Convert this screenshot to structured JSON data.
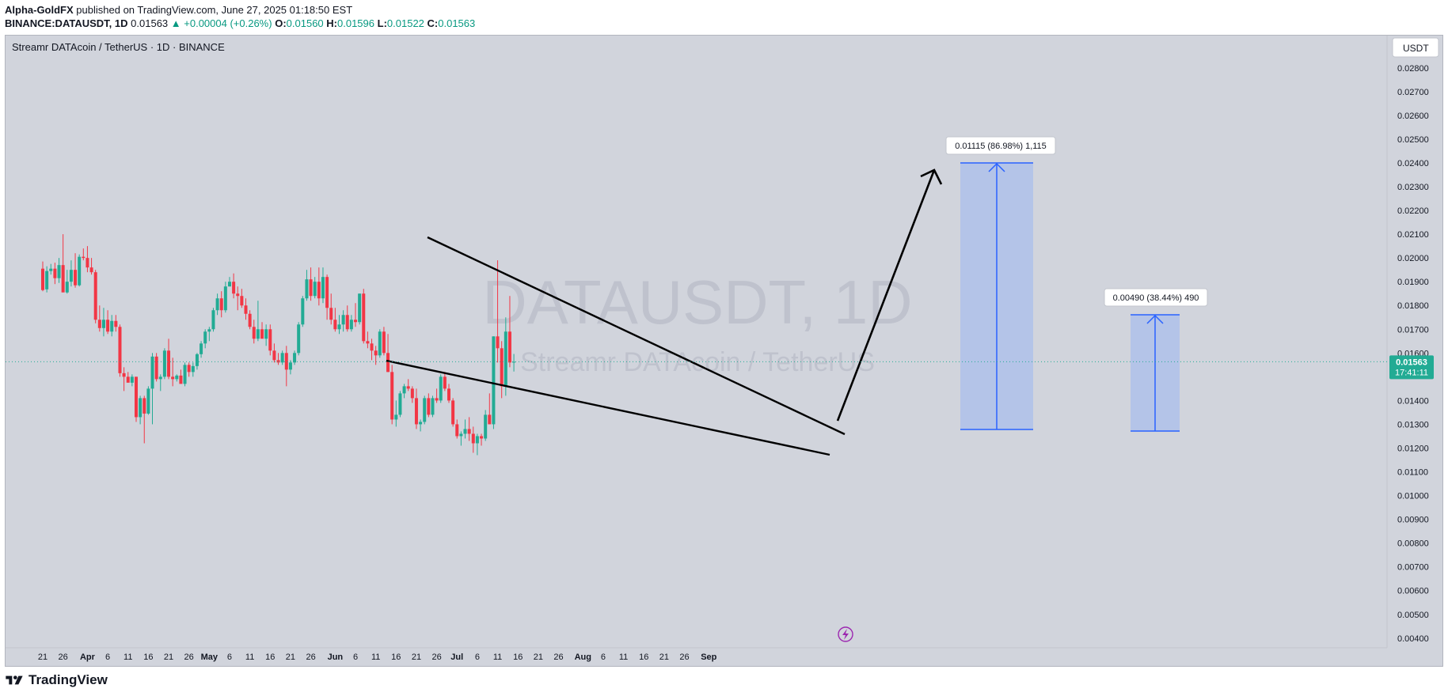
{
  "header": {
    "publisher": "Alpha-GoldFX",
    "published_text": "published on TradingView.com, June 27, 2025 01:18:50 EST",
    "symbol_line": "BINANCE:DATAUSDT, 1D",
    "last": "0.01563",
    "change": "▲ +0.00004 (+0.26%)",
    "o_label": "O:",
    "o": "0.01560",
    "h_label": "H:",
    "h": "0.01596",
    "l_label": "L:",
    "l": "0.01522",
    "c_label": "C:",
    "c": "0.01563"
  },
  "legend": {
    "title": "Streamr DATAcoin / TetherUS · 1D · BINANCE"
  },
  "watermark": {
    "symbol": "DATAUSDT, 1D",
    "name": "Streamr DATAcoin / TetherUS"
  },
  "currency_button": "USDT",
  "price_tag": {
    "value": "0.01563",
    "countdown": "17:41:11"
  },
  "footer": {
    "brand": "TradingView"
  },
  "colors": {
    "up": "#22ab94",
    "down": "#f23645",
    "bg": "#d1d4dc",
    "target_box": "#b4c4e8",
    "target_line": "#2962ff",
    "price_tag": "#22ab94"
  },
  "chart_data": {
    "type": "candlestick",
    "y_axis": {
      "range": [
        0.0036,
        0.029
      ],
      "ticks": [
        "0.02800",
        "0.02700",
        "0.02600",
        "0.02500",
        "0.02400",
        "0.02300",
        "0.02200",
        "0.02100",
        "0.02000",
        "0.01900",
        "0.01800",
        "0.01700",
        "0.01600",
        "0.01400",
        "0.01300",
        "0.01200",
        "0.01100",
        "0.01000",
        "0.00900",
        "0.00800",
        "0.00700",
        "0.00600",
        "0.00500",
        "0.00400"
      ]
    },
    "x_axis": {
      "ticks": [
        "21",
        "26",
        "Apr",
        "6",
        "11",
        "16",
        "21",
        "26",
        "May",
        "6",
        "11",
        "16",
        "21",
        "26",
        "Jun",
        "6",
        "11",
        "16",
        "21",
        "26",
        "Jul",
        "6",
        "11",
        "16",
        "21",
        "26",
        "Aug",
        "6",
        "11",
        "16",
        "21",
        "26",
        "Sep"
      ],
      "tick_day_index": [
        0,
        5,
        11,
        16,
        21,
        26,
        31,
        36,
        41,
        46,
        51,
        56,
        61,
        66,
        72,
        77,
        82,
        87,
        92,
        97,
        102,
        107,
        112,
        117,
        122,
        127,
        133,
        138,
        143,
        148,
        153,
        158,
        164
      ],
      "first_date": "Mar 21, 2025"
    },
    "candles": [
      [
        0.01955,
        0.01985,
        0.0186,
        0.01865
      ],
      [
        0.01868,
        0.01965,
        0.01855,
        0.01945
      ],
      [
        0.01945,
        0.01975,
        0.0193,
        0.01955
      ],
      [
        0.01955,
        0.0198,
        0.0189,
        0.01915
      ],
      [
        0.01915,
        0.02,
        0.01895,
        0.0197
      ],
      [
        0.0197,
        0.021,
        0.0186,
        0.01855
      ],
      [
        0.01855,
        0.0195,
        0.0185,
        0.019
      ],
      [
        0.019,
        0.0199,
        0.0188,
        0.0195
      ],
      [
        0.0195,
        0.0202,
        0.01875,
        0.01885
      ],
      [
        0.01885,
        0.02015,
        0.0188,
        0.02005
      ],
      [
        0.02005,
        0.0204,
        0.0199,
        0.02
      ],
      [
        0.02,
        0.0205,
        0.0194,
        0.0196
      ],
      [
        0.0196,
        0.02,
        0.0193,
        0.0194
      ],
      [
        0.0194,
        0.0195,
        0.01725,
        0.0174
      ],
      [
        0.0174,
        0.018,
        0.0169,
        0.01705
      ],
      [
        0.01705,
        0.0179,
        0.0167,
        0.0174
      ],
      [
        0.0174,
        0.0178,
        0.0168,
        0.0169
      ],
      [
        0.0169,
        0.0176,
        0.0167,
        0.01735
      ],
      [
        0.01735,
        0.0176,
        0.0169,
        0.0171
      ],
      [
        0.0171,
        0.0172,
        0.015,
        0.01515
      ],
      [
        0.01515,
        0.0154,
        0.0144,
        0.015
      ],
      [
        0.015,
        0.0152,
        0.0148,
        0.01475
      ],
      [
        0.01475,
        0.0151,
        0.0146,
        0.015
      ],
      [
        0.015,
        0.015,
        0.0131,
        0.0133
      ],
      [
        0.0133,
        0.0142,
        0.013,
        0.0141
      ],
      [
        0.0141,
        0.0142,
        0.0122,
        0.01345
      ],
      [
        0.01345,
        0.0146,
        0.0134,
        0.0145
      ],
      [
        0.0145,
        0.016,
        0.013,
        0.01585
      ],
      [
        0.01585,
        0.016,
        0.0148,
        0.0149
      ],
      [
        0.0149,
        0.0151,
        0.0144,
        0.015
      ],
      [
        0.015,
        0.0162,
        0.0149,
        0.0161
      ],
      [
        0.0161,
        0.0166,
        0.0149,
        0.015
      ],
      [
        0.015,
        0.0158,
        0.0146,
        0.0149
      ],
      [
        0.0149,
        0.0151,
        0.0148,
        0.01505
      ],
      [
        0.01505,
        0.0153,
        0.0148,
        0.0147
      ],
      [
        0.0147,
        0.0156,
        0.0146,
        0.0155
      ],
      [
        0.0155,
        0.0156,
        0.015,
        0.0152
      ],
      [
        0.0152,
        0.0156,
        0.015,
        0.01545
      ],
      [
        0.01545,
        0.016,
        0.0153,
        0.01595
      ],
      [
        0.01595,
        0.0165,
        0.0158,
        0.0164
      ],
      [
        0.0164,
        0.017,
        0.0162,
        0.0169
      ],
      [
        0.0169,
        0.0171,
        0.0165,
        0.017
      ],
      [
        0.017,
        0.0179,
        0.0169,
        0.0178
      ],
      [
        0.0178,
        0.0185,
        0.0176,
        0.0183
      ],
      [
        0.0183,
        0.0186,
        0.0175,
        0.0178
      ],
      [
        0.0178,
        0.019,
        0.0177,
        0.0188
      ],
      [
        0.0188,
        0.0192,
        0.0188,
        0.019
      ],
      [
        0.019,
        0.01935,
        0.0183,
        0.0185
      ],
      [
        0.0185,
        0.0188,
        0.0178,
        0.0184
      ],
      [
        0.0184,
        0.0187,
        0.0179,
        0.018
      ],
      [
        0.018,
        0.0183,
        0.0174,
        0.01765
      ],
      [
        0.01765,
        0.0178,
        0.017,
        0.0171
      ],
      [
        0.0171,
        0.0174,
        0.0164,
        0.0166
      ],
      [
        0.0166,
        0.0182,
        0.0165,
        0.017
      ],
      [
        0.017,
        0.0173,
        0.0167,
        0.0166
      ],
      [
        0.0166,
        0.0172,
        0.0163,
        0.017
      ],
      [
        0.017,
        0.0172,
        0.0159,
        0.0161
      ],
      [
        0.0161,
        0.0164,
        0.0156,
        0.0157
      ],
      [
        0.0157,
        0.016,
        0.0155,
        0.0156
      ],
      [
        0.0156,
        0.0161,
        0.0155,
        0.016
      ],
      [
        0.016,
        0.0163,
        0.0146,
        0.0153
      ],
      [
        0.0153,
        0.0157,
        0.0151,
        0.0156
      ],
      [
        0.0156,
        0.0161,
        0.0155,
        0.016
      ],
      [
        0.016,
        0.0173,
        0.0159,
        0.0172
      ],
      [
        0.0172,
        0.0184,
        0.0171,
        0.0183
      ],
      [
        0.0183,
        0.0195,
        0.0182,
        0.0191
      ],
      [
        0.0191,
        0.0196,
        0.0182,
        0.0184
      ],
      [
        0.0184,
        0.0192,
        0.0183,
        0.019
      ],
      [
        0.019,
        0.0196,
        0.018,
        0.0183
      ],
      [
        0.0183,
        0.0196,
        0.0181,
        0.0192
      ],
      [
        0.0192,
        0.0193,
        0.0174,
        0.0179
      ],
      [
        0.0179,
        0.0185,
        0.0172,
        0.0174
      ],
      [
        0.0174,
        0.0179,
        0.0169,
        0.017
      ],
      [
        0.017,
        0.0176,
        0.0168,
        0.0172
      ],
      [
        0.0172,
        0.0178,
        0.0169,
        0.0176
      ],
      [
        0.0176,
        0.018,
        0.0169,
        0.017
      ],
      [
        0.017,
        0.0176,
        0.0169,
        0.0174
      ],
      [
        0.0174,
        0.0181,
        0.0171,
        0.0173
      ],
      [
        0.0173,
        0.0185,
        0.0172,
        0.0185
      ],
      [
        0.0185,
        0.0187,
        0.0164,
        0.0165
      ],
      [
        0.0165,
        0.0169,
        0.0162,
        0.0164
      ],
      [
        0.0164,
        0.0166,
        0.0157,
        0.0161
      ],
      [
        0.0161,
        0.0163,
        0.0155,
        0.0159
      ],
      [
        0.0159,
        0.017,
        0.0158,
        0.0169
      ],
      [
        0.0169,
        0.0171,
        0.0159,
        0.016
      ],
      [
        0.016,
        0.0168,
        0.0152,
        0.0152
      ],
      [
        0.0152,
        0.0155,
        0.013,
        0.0132
      ],
      [
        0.0132,
        0.014,
        0.0129,
        0.0134
      ],
      [
        0.0134,
        0.0144,
        0.0133,
        0.0143
      ],
      [
        0.0143,
        0.0147,
        0.0141,
        0.0146
      ],
      [
        0.0146,
        0.0149,
        0.0144,
        0.0145
      ],
      [
        0.0145,
        0.0146,
        0.0139,
        0.0141
      ],
      [
        0.0141,
        0.0145,
        0.0128,
        0.013
      ],
      [
        0.013,
        0.0132,
        0.0127,
        0.0131
      ],
      [
        0.0131,
        0.0142,
        0.013,
        0.0141
      ],
      [
        0.0141,
        0.0143,
        0.0133,
        0.0134
      ],
      [
        0.0134,
        0.0142,
        0.0133,
        0.0141
      ],
      [
        0.0141,
        0.0145,
        0.0139,
        0.014
      ],
      [
        0.014,
        0.0151,
        0.0139,
        0.015
      ],
      [
        0.015,
        0.0152,
        0.0144,
        0.0145
      ],
      [
        0.0145,
        0.0147,
        0.0139,
        0.014
      ],
      [
        0.014,
        0.0141,
        0.0129,
        0.013
      ],
      [
        0.013,
        0.0132,
        0.0124,
        0.0125
      ],
      [
        0.0125,
        0.0127,
        0.0121,
        0.0126
      ],
      [
        0.0126,
        0.0132,
        0.0124,
        0.0128
      ],
      [
        0.0128,
        0.0133,
        0.0123,
        0.0126
      ],
      [
        0.0126,
        0.0129,
        0.0118,
        0.0122
      ],
      [
        0.0122,
        0.0126,
        0.0117,
        0.0125
      ],
      [
        0.0125,
        0.0126,
        0.0121,
        0.0124
      ],
      [
        0.0124,
        0.0136,
        0.0123,
        0.0134
      ],
      [
        0.0134,
        0.0143,
        0.013,
        0.013
      ],
      [
        0.013,
        0.0167,
        0.0128,
        0.0167
      ],
      [
        0.0167,
        0.0199,
        0.0156,
        0.0162
      ],
      [
        0.0162,
        0.0165,
        0.0141,
        0.0146
      ],
      [
        0.0146,
        0.0175,
        0.0142,
        0.0169
      ],
      [
        0.0169,
        0.0184,
        0.0154,
        0.0156
      ],
      [
        0.0156,
        0.01596,
        0.01522,
        0.01563
      ]
    ]
  }
}
